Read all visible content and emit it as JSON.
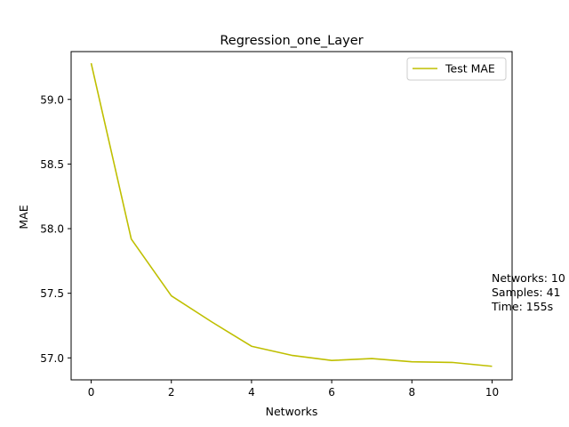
{
  "chart_data": {
    "type": "line",
    "title": "Regression_one_Layer",
    "xlabel": "Networks",
    "ylabel": "MAE",
    "xlim": [
      -0.5,
      10.5
    ],
    "ylim": [
      56.83,
      59.37
    ],
    "xticks": [
      0,
      2,
      4,
      6,
      8,
      10
    ],
    "xtick_labels": [
      "0",
      "2",
      "4",
      "6",
      "8",
      "10"
    ],
    "yticks": [
      57.0,
      57.5,
      58.0,
      58.5,
      59.0
    ],
    "ytick_labels": [
      "57.0",
      "57.5",
      "58.0",
      "58.5",
      "59.0"
    ],
    "grid": false,
    "legend_position": "top-right",
    "series": [
      {
        "name": "Test MAE",
        "color": "#bfbf00",
        "x": [
          0,
          1,
          2,
          3,
          4,
          5,
          6,
          7,
          8,
          9,
          10
        ],
        "y": [
          59.28,
          57.92,
          57.48,
          57.28,
          57.09,
          57.02,
          56.98,
          56.995,
          56.97,
          56.965,
          56.935
        ]
      }
    ],
    "annotation_lines": [
      "Networks: 10",
      "Samples: 41",
      "Time: 155s"
    ]
  }
}
